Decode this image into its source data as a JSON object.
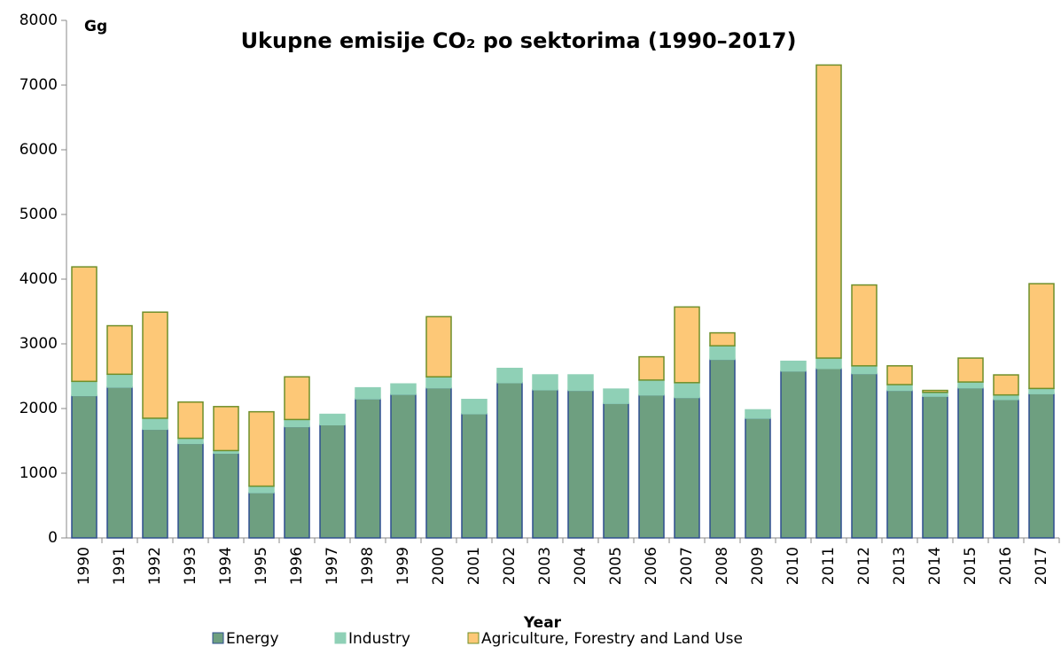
{
  "chart_data": {
    "type": "stacked_bar",
    "title": "Ukupne emisije CO₂ po sektorima (1990–2017)",
    "y_label": "Gg",
    "x_label": "Year",
    "categories": [
      "1990",
      "1991",
      "1992",
      "1993",
      "1994",
      "1995",
      "1996",
      "1997",
      "1998",
      "1999",
      "2000",
      "2001",
      "2002",
      "2003",
      "2004",
      "2005",
      "2006",
      "2007",
      "2008",
      "2009",
      "2010",
      "2011",
      "2012",
      "2013",
      "2014",
      "2015",
      "2016",
      "2017"
    ],
    "series": [
      {
        "name": "Energy",
        "color": "#6e9f80",
        "stroke": "#2f4f8f",
        "values": [
          2200,
          2330,
          1680,
          1460,
          1310,
          700,
          1720,
          1750,
          2150,
          2220,
          2320,
          1920,
          2400,
          2290,
          2280,
          2080,
          2210,
          2170,
          2760,
          1850,
          2580,
          2620,
          2540,
          2280,
          2190,
          2320,
          2140,
          2230
        ]
      },
      {
        "name": "Industry",
        "color": "#8fd0b6",
        "stroke": "#8fd0b6",
        "values": [
          220,
          200,
          170,
          80,
          40,
          100,
          110,
          160,
          170,
          160,
          170,
          220,
          220,
          230,
          240,
          220,
          230,
          230,
          210,
          130,
          150,
          160,
          120,
          90,
          60,
          90,
          70,
          80
        ]
      },
      {
        "name": "Agriculture, Forestry and Land Use",
        "color": "#fdc877",
        "stroke": "#6f8f2a",
        "values": [
          1770,
          750,
          1640,
          560,
          680,
          1150,
          660,
          0,
          0,
          0,
          930,
          0,
          0,
          0,
          0,
          0,
          360,
          1170,
          200,
          0,
          0,
          4530,
          1250,
          290,
          30,
          370,
          310,
          1620
        ]
      }
    ],
    "ylim": [
      0,
      8000
    ],
    "yticks": [
      0,
      1000,
      2000,
      3000,
      4000,
      5000,
      6000,
      7000,
      8000
    ]
  }
}
